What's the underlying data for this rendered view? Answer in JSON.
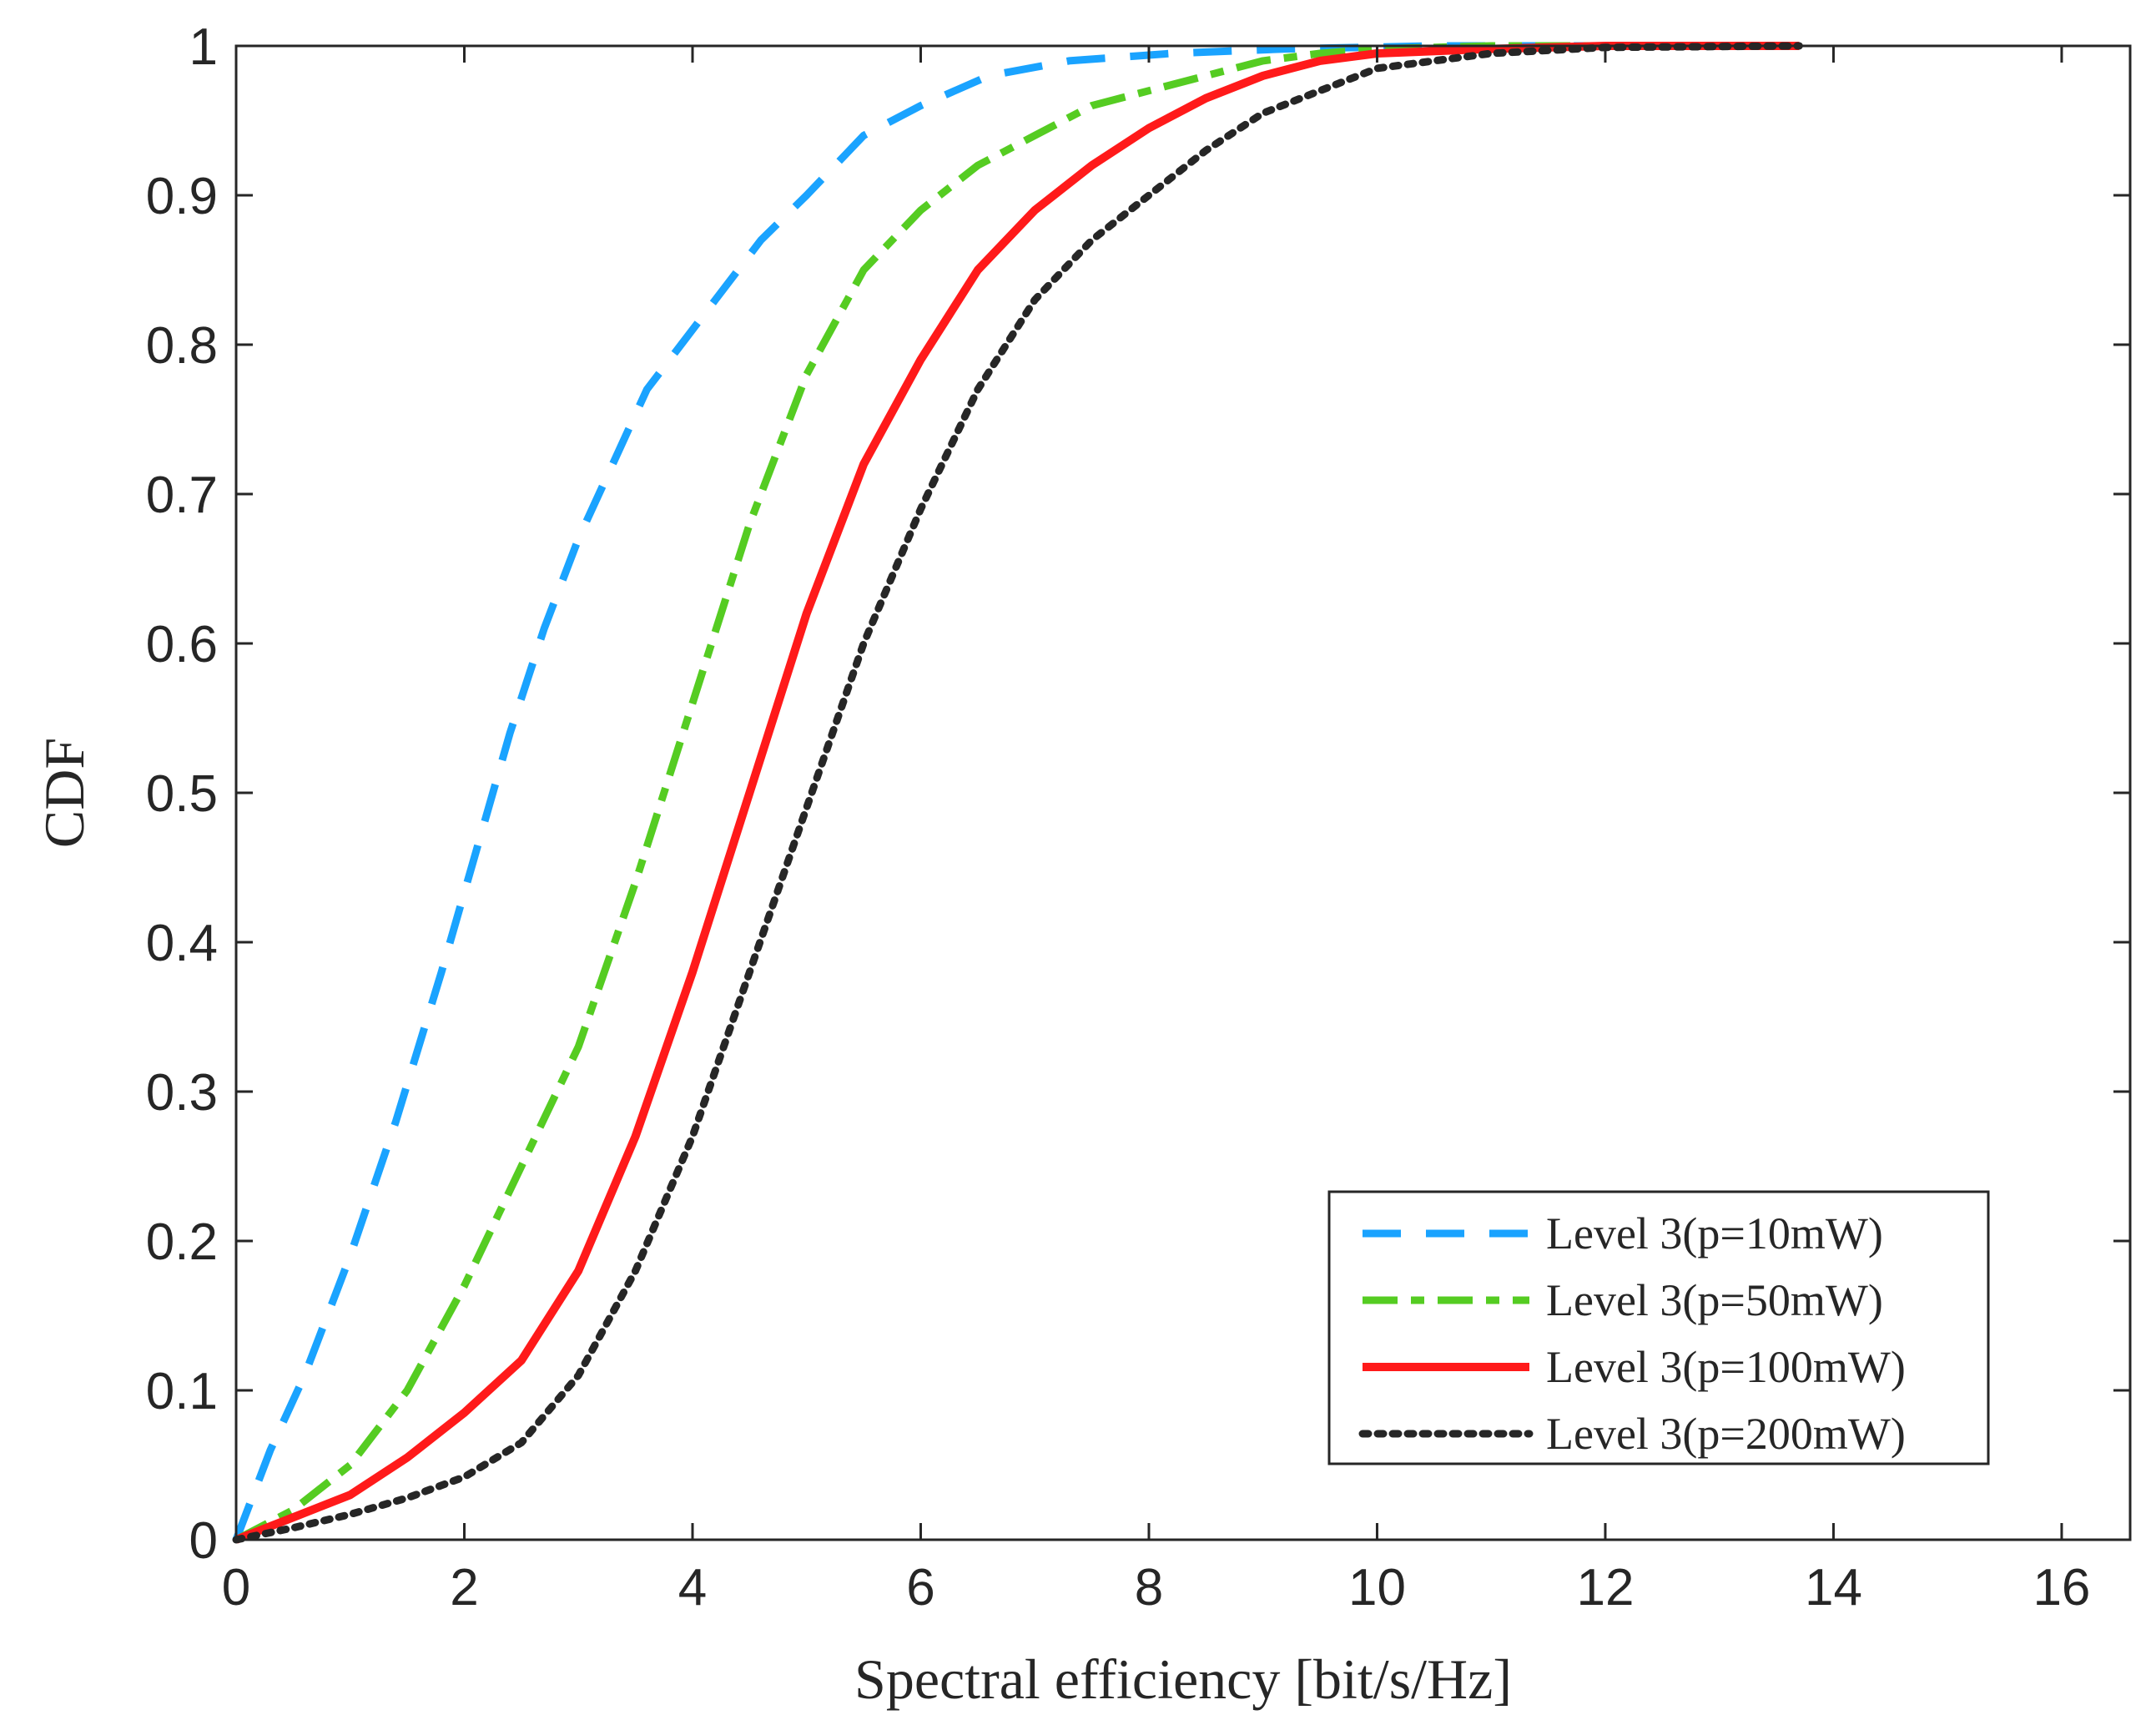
{
  "chart_data": {
    "type": "line",
    "title": "",
    "xlabel": "Spectral efficiency [bit/s/Hz]",
    "ylabel": "CDF",
    "xlim": [
      0,
      16.6
    ],
    "ylim": [
      0,
      1
    ],
    "xticks": [
      0,
      2,
      4,
      6,
      8,
      10,
      12,
      14,
      16
    ],
    "yticks": [
      0,
      0.1,
      0.2,
      0.3,
      0.4,
      0.5,
      0.6,
      0.7,
      0.8,
      0.9,
      1
    ],
    "xtick_labels": [
      "0",
      "2",
      "4",
      "6",
      "8",
      "10",
      "12",
      "14",
      "16"
    ],
    "ytick_labels": [
      "0",
      "0.1",
      "0.2",
      "0.3",
      "0.4",
      "0.5",
      "0.6",
      "0.7",
      "0.8",
      "0.9",
      "1"
    ],
    "grid": false,
    "legend_position": "bottom-right",
    "series": [
      {
        "name": "Level 3(p=10mW)",
        "color": "#1aa3ff",
        "style": "dashed",
        "x": [
          0,
          0.3,
          0.6,
          1.0,
          1.4,
          1.8,
          2.1,
          2.4,
          2.7,
          3.0,
          3.3,
          3.6,
          3.9,
          4.2,
          4.6,
          5.0,
          5.5,
          6.0,
          6.6,
          7.3,
          8.2,
          9.2,
          10.5,
          12.0
        ],
        "y": [
          0,
          0.06,
          0.11,
          0.19,
          0.28,
          0.38,
          0.46,
          0.54,
          0.61,
          0.67,
          0.72,
          0.77,
          0.8,
          0.83,
          0.87,
          0.9,
          0.94,
          0.96,
          0.98,
          0.99,
          0.995,
          0.998,
          1.0,
          1.0
        ]
      },
      {
        "name": "Level 3(p=50mW)",
        "color": "#55cc22",
        "style": "dashdot",
        "x": [
          0,
          0.5,
          1.0,
          1.5,
          2.0,
          2.5,
          3.0,
          3.5,
          4.0,
          4.5,
          5.0,
          5.5,
          6.0,
          6.5,
          7.0,
          7.5,
          8.0,
          8.5,
          9.0,
          9.5,
          10.0,
          11.0,
          12.0
        ],
        "y": [
          0,
          0.02,
          0.05,
          0.1,
          0.17,
          0.25,
          0.33,
          0.44,
          0.56,
          0.68,
          0.78,
          0.85,
          0.89,
          0.92,
          0.94,
          0.96,
          0.97,
          0.98,
          0.99,
          0.995,
          0.998,
          1.0,
          1.0
        ]
      },
      {
        "name": "Level 3(p=100mW)",
        "color": "#ff1a1a",
        "style": "solid",
        "x": [
          0,
          0.5,
          1.0,
          1.5,
          2.0,
          2.5,
          3.0,
          3.5,
          4.0,
          4.5,
          5.0,
          5.5,
          6.0,
          6.5,
          7.0,
          7.5,
          8.0,
          8.5,
          9.0,
          9.5,
          10.0,
          11.0,
          12.0,
          13.7
        ],
        "y": [
          0,
          0.015,
          0.03,
          0.055,
          0.085,
          0.12,
          0.18,
          0.27,
          0.38,
          0.5,
          0.62,
          0.72,
          0.79,
          0.85,
          0.89,
          0.92,
          0.945,
          0.965,
          0.98,
          0.99,
          0.995,
          0.998,
          1.0,
          1.0
        ]
      },
      {
        "name": "Level 3(p=200mW)",
        "color": "#262626",
        "style": "dotted",
        "x": [
          0,
          0.5,
          1.0,
          1.5,
          2.0,
          2.5,
          3.0,
          3.5,
          4.0,
          4.5,
          5.0,
          5.5,
          6.0,
          6.5,
          7.0,
          7.5,
          8.0,
          8.5,
          9.0,
          9.5,
          10.0,
          10.5,
          11.0,
          12.0,
          13.7
        ],
        "y": [
          0,
          0.008,
          0.017,
          0.028,
          0.042,
          0.065,
          0.11,
          0.18,
          0.27,
          0.38,
          0.49,
          0.6,
          0.69,
          0.77,
          0.83,
          0.87,
          0.9,
          0.93,
          0.955,
          0.97,
          0.985,
          0.99,
          0.995,
          0.999,
          1.0
        ]
      }
    ]
  }
}
